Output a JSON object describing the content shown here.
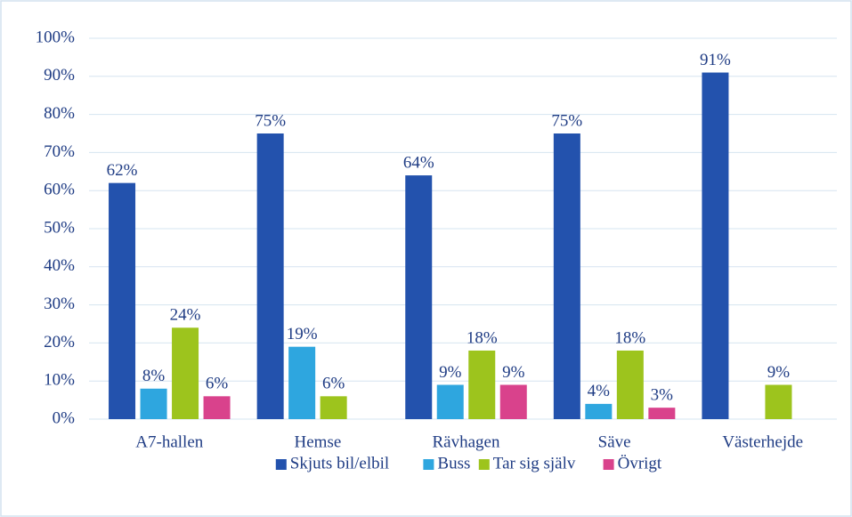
{
  "chart_data": {
    "type": "bar",
    "categories": [
      "A7-hallen",
      "Hemse",
      "Rävhagen",
      "Säve",
      "Västerhejde"
    ],
    "series": [
      {
        "name": "Skjuts bil/elbil",
        "color": "#2352ad",
        "values": [
          62,
          75,
          64,
          75,
          91
        ],
        "value_labels": [
          "62%",
          "75%",
          "64%",
          "75%",
          "91%"
        ]
      },
      {
        "name": "Buss",
        "color": "#2ea6df",
        "values": [
          8,
          19,
          9,
          4,
          null
        ],
        "value_labels": [
          "8%",
          "19%",
          "9%",
          "4%",
          null
        ]
      },
      {
        "name": "Tar sig själv",
        "color": "#9dc41d",
        "values": [
          24,
          6,
          18,
          18,
          9
        ],
        "value_labels": [
          "24%",
          "6%",
          "18%",
          "18%",
          "9%"
        ]
      },
      {
        "name": "Övrigt",
        "color": "#d9428c",
        "values": [
          6,
          null,
          9,
          3,
          null
        ],
        "value_labels": [
          "6%",
          null,
          "9%",
          "3%",
          null
        ]
      }
    ],
    "ylim": [
      0,
      100
    ],
    "yticks": [
      {
        "value": 0,
        "label": "0%"
      },
      {
        "value": 10,
        "label": "10%"
      },
      {
        "value": 20,
        "label": "20%"
      },
      {
        "value": 30,
        "label": "30%"
      },
      {
        "value": 40,
        "label": "40%"
      },
      {
        "value": 50,
        "label": "50%"
      },
      {
        "value": 60,
        "label": "60%"
      },
      {
        "value": 70,
        "label": "70%"
      },
      {
        "value": 80,
        "label": "80%"
      },
      {
        "value": 90,
        "label": "90%"
      },
      {
        "value": 100,
        "label": "100%"
      }
    ],
    "grid": true,
    "legend": "bottom"
  }
}
